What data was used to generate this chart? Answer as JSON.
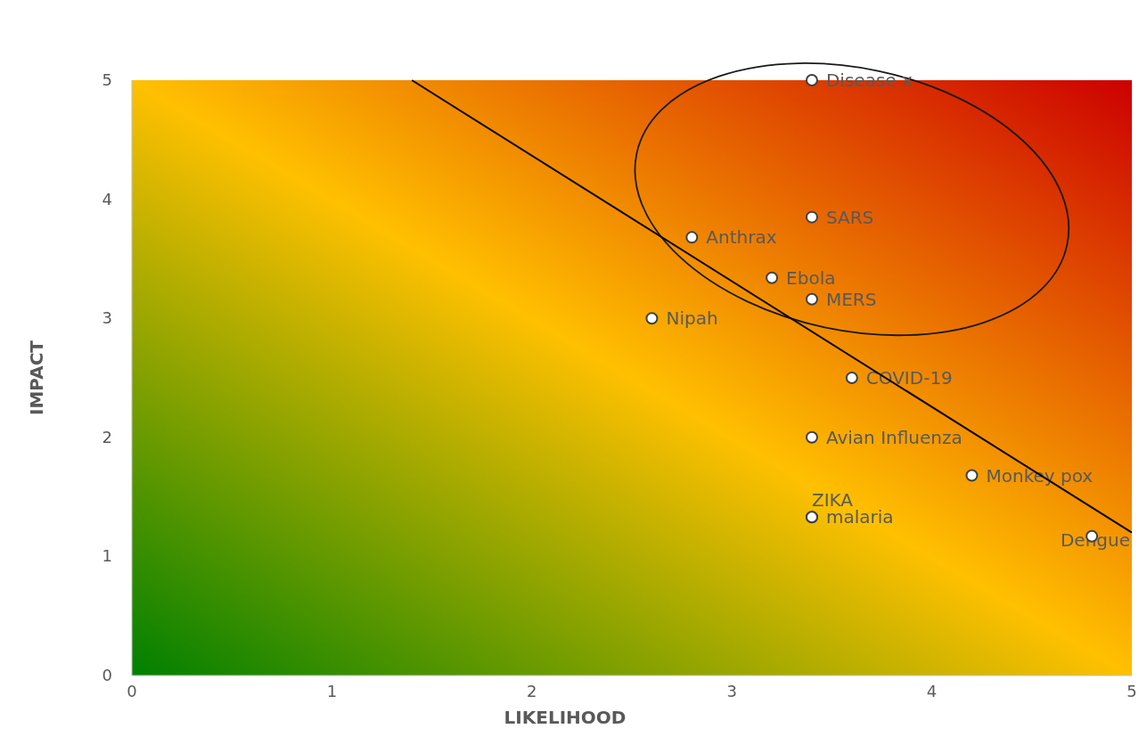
{
  "chart_data": {
    "type": "scatter",
    "xlabel": "LIKELIHOOD",
    "ylabel": "IMPACT",
    "xlim": [
      0,
      5
    ],
    "ylim": [
      0,
      5
    ],
    "xticks": [
      0,
      1,
      2,
      3,
      4,
      5
    ],
    "yticks": [
      0,
      1,
      2,
      3,
      4,
      5
    ],
    "grid": false,
    "marker": "circle",
    "series": [
      {
        "name": "Disease x",
        "color": "#ffffff",
        "x": [
          3.4
        ],
        "values": [
          5
        ]
      },
      {
        "name": "SARS",
        "color": "#ffffff",
        "x": [
          3.4
        ],
        "values": [
          3.85
        ]
      },
      {
        "name": "Anthrax",
        "color": "#ffffff",
        "x": [
          2.8
        ],
        "values": [
          3.68
        ]
      },
      {
        "name": "Ebola",
        "color": "#ffffff",
        "x": [
          3.2
        ],
        "values": [
          3.34
        ]
      },
      {
        "name": "MERS",
        "color": "#ffffff",
        "x": [
          3.4
        ],
        "values": [
          3.16
        ]
      },
      {
        "name": "Nipah",
        "color": "#ffffff",
        "x": [
          2.6
        ],
        "values": [
          3
        ]
      },
      {
        "name": "COVID-19",
        "color": "#ffffff",
        "x": [
          3.6
        ],
        "values": [
          2.5
        ]
      },
      {
        "name": "Avian Influenza",
        "color": "#ffffff",
        "x": [
          3.4
        ],
        "values": [
          2
        ]
      },
      {
        "name": "Monkey pox",
        "color": "#ffffff",
        "x": [
          4.2
        ],
        "values": [
          1.68
        ]
      },
      {
        "name": "malaria",
        "color": "#ffffff",
        "x": [
          3.4
        ],
        "values": [
          1.33
        ]
      },
      {
        "name": "ZIKA",
        "color": "#ffffff",
        "x": [
          3.4
        ],
        "values": [
          1.33
        ]
      },
      {
        "name": "Dengue",
        "color": "#ffffff",
        "x": [
          4.8
        ],
        "values": [
          1.17
        ]
      },
      {
        "type": "line",
        "color": "#000000",
        "x": [
          1.4,
          5
        ],
        "values": [
          5,
          1.2
        ],
        "marker": "none"
      }
    ]
  }
}
